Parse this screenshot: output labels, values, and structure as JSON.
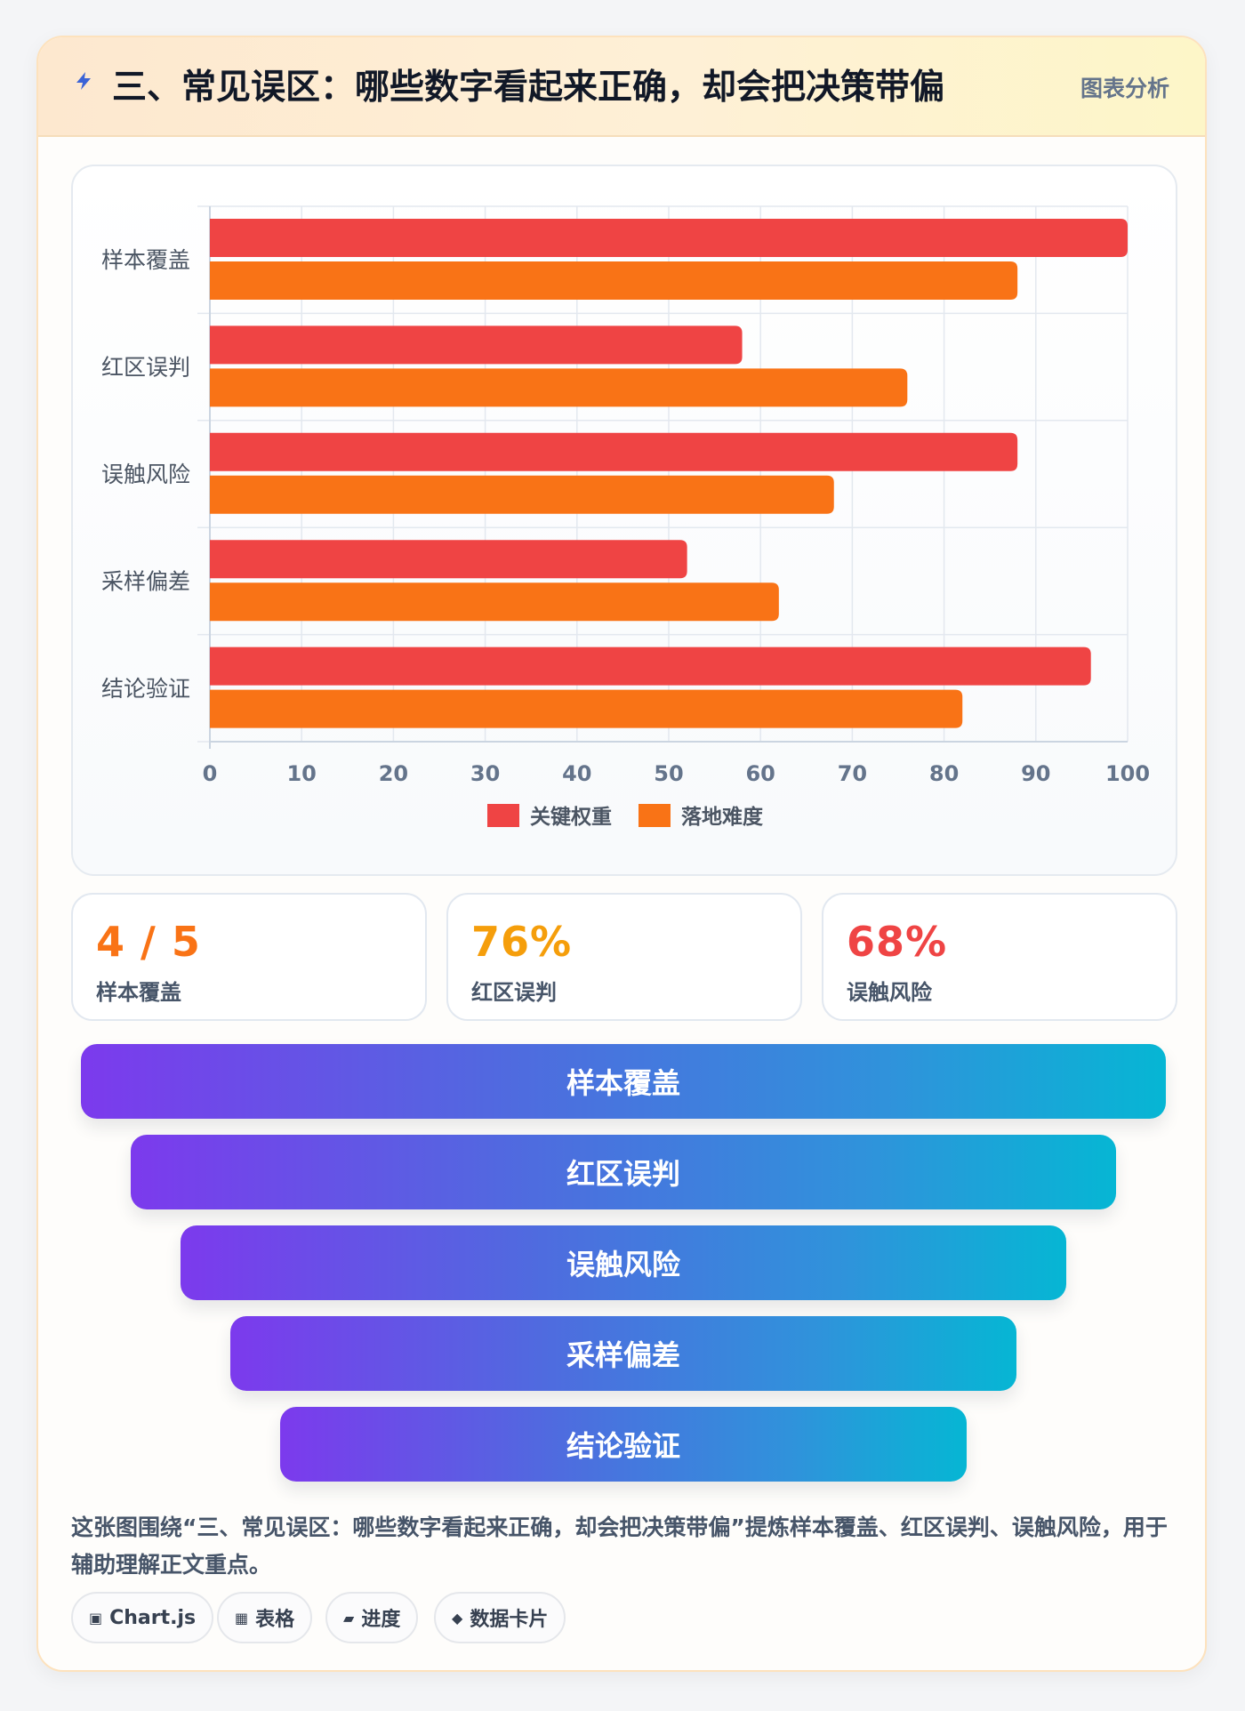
{
  "header": {
    "title": "三、常见误区：哪些数字看起来正确，却会把决策带偏",
    "tag": "图表分析",
    "icon": "lightning-icon"
  },
  "chart_data": {
    "type": "bar",
    "orientation": "horizontal",
    "categories": [
      "样本覆盖",
      "红区误判",
      "误触风险",
      "采样偏差",
      "结论验证"
    ],
    "series": [
      {
        "name": "关键权重",
        "color": "#ef4444",
        "values": [
          100,
          58,
          88,
          52,
          96
        ]
      },
      {
        "name": "落地难度",
        "color": "#f97316",
        "values": [
          88,
          76,
          68,
          62,
          82
        ]
      }
    ],
    "xlim": [
      0,
      100
    ],
    "xticks": [
      0,
      10,
      20,
      30,
      40,
      50,
      60,
      70,
      80,
      90,
      100
    ],
    "grid": true,
    "legend": "bottom"
  },
  "stats": [
    {
      "value": "4 / 5",
      "label": "样本覆盖",
      "color": "#f97316"
    },
    {
      "value": "76%",
      "label": "红区误判",
      "color": "#f59e0b"
    },
    {
      "value": "68%",
      "label": "误触风险",
      "color": "#ef4444"
    }
  ],
  "funnel": [
    "样本覆盖",
    "红区误判",
    "误触风险",
    "采样偏差",
    "结论验证"
  ],
  "caption": "这张图围绕“三、常见误区：哪些数字看起来正确，却会把决策带偏”提炼样本覆盖、红区误判、误触风险，用于辅助理解正文重点。",
  "tags": [
    {
      "icon": "▣",
      "label": "Chart.js"
    },
    {
      "icon": "▦",
      "label": "表格"
    },
    {
      "icon": "▰",
      "label": "进度"
    },
    {
      "icon": "◆",
      "label": "数据卡片"
    }
  ]
}
